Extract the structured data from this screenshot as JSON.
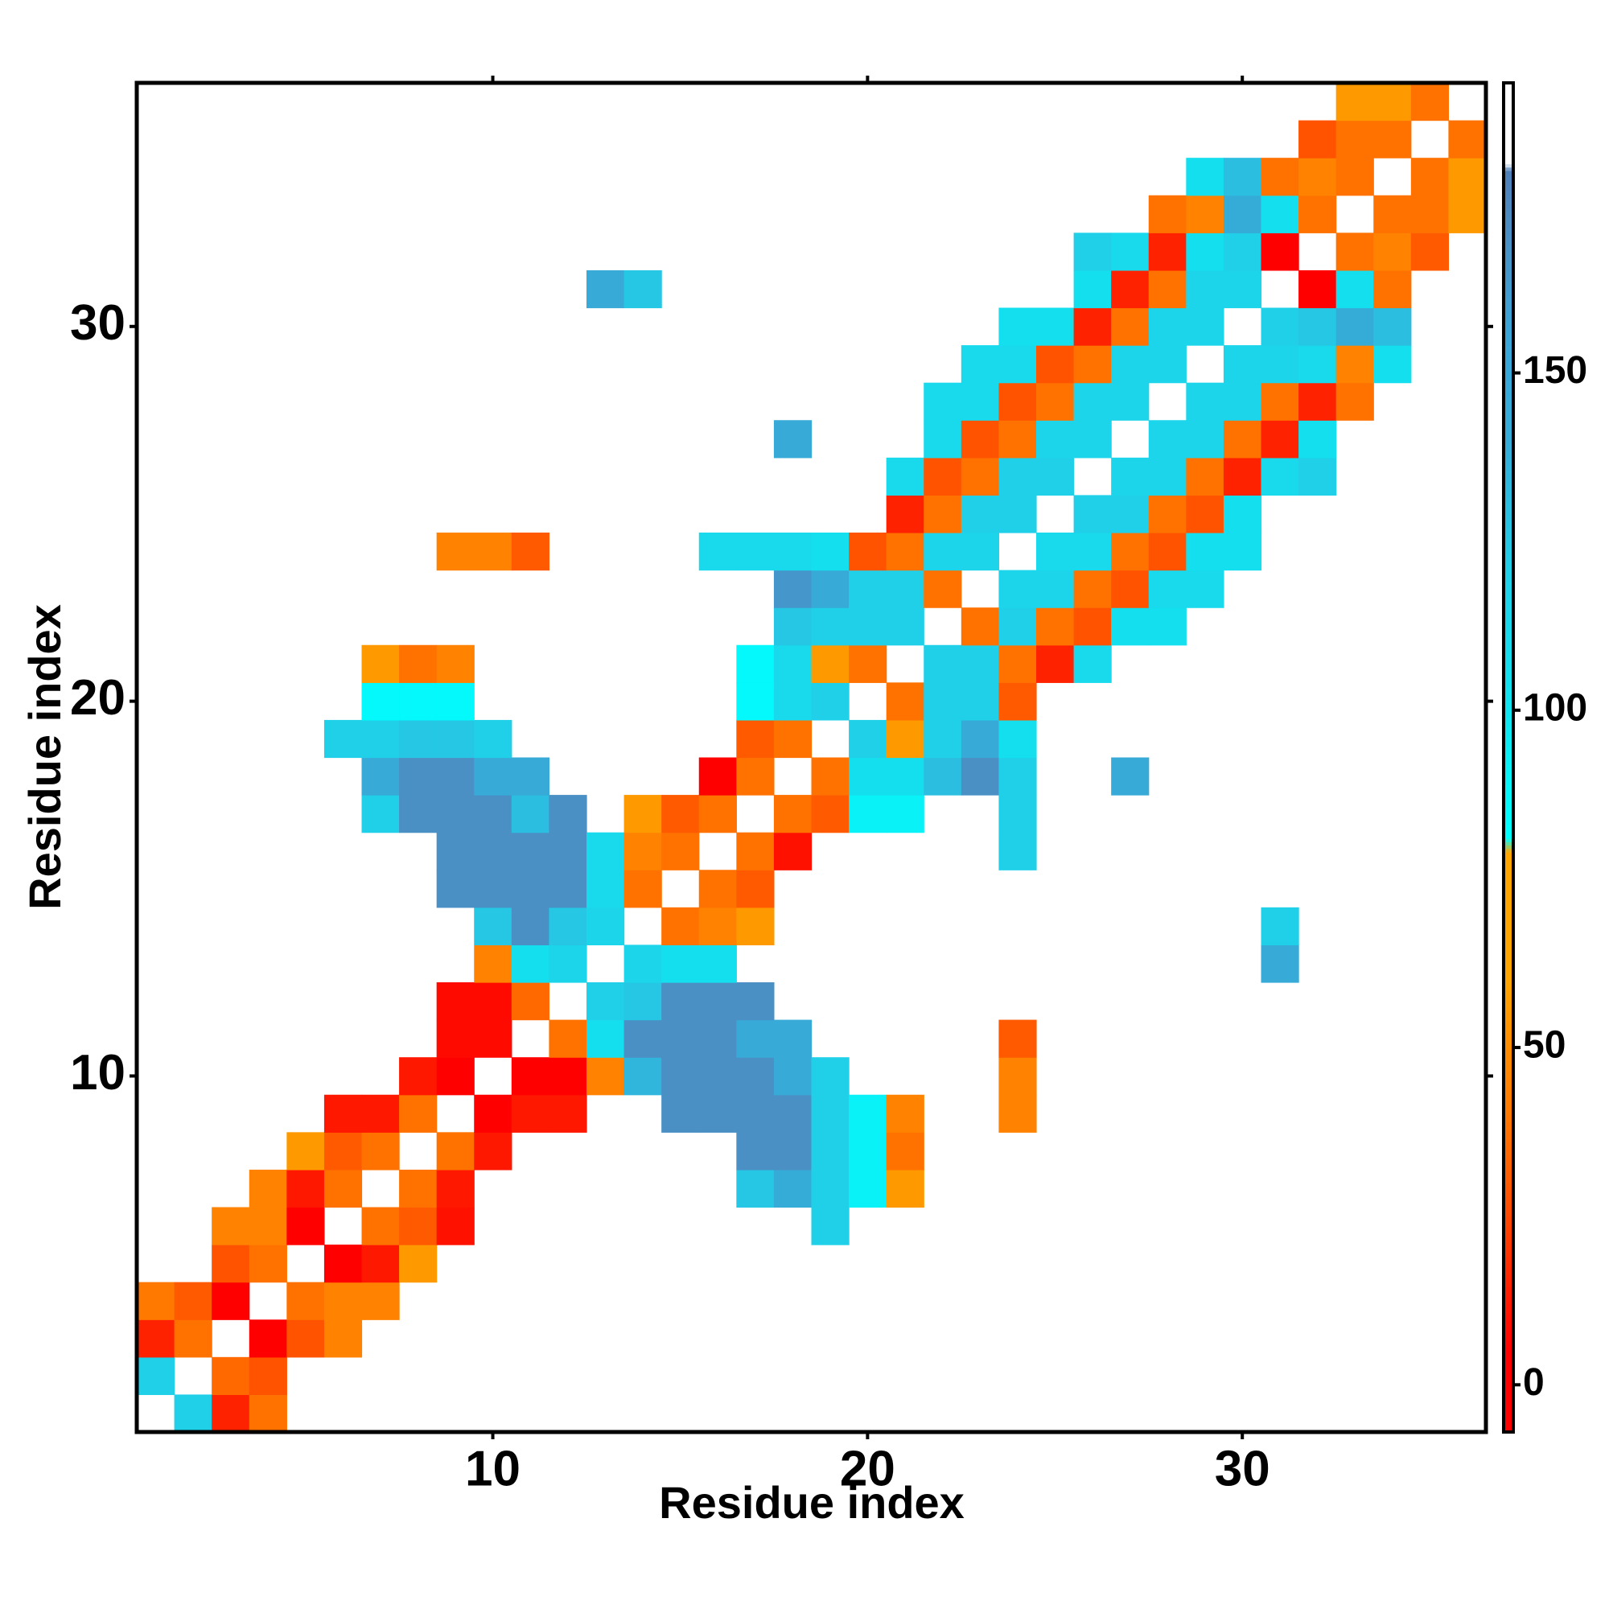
{
  "chart_data": {
    "type": "heatmap",
    "x_label": "Residue index",
    "y_label": "Residue index",
    "xlim": [
      0.5,
      36.5
    ],
    "ylim": [
      0.5,
      36.5
    ],
    "xticks": [
      10,
      20,
      30
    ],
    "yticks": [
      10,
      20,
      30
    ],
    "clim": [
      -7,
      193
    ],
    "cticks": [
      0,
      50,
      100,
      150
    ],
    "colorscale": [
      {
        "value": -7,
        "color": "#ff0000"
      },
      {
        "value": 5,
        "color": "#ff0000"
      },
      {
        "value": 15,
        "color": "#ff2200"
      },
      {
        "value": 30,
        "color": "#ff5a00"
      },
      {
        "value": 40,
        "color": "#ff7800"
      },
      {
        "value": 50,
        "color": "#ff8c00"
      },
      {
        "value": 60,
        "color": "#ffa500"
      },
      {
        "value": 79,
        "color": "#ffa500"
      },
      {
        "value": 81,
        "color": "#00ffff"
      },
      {
        "value": 100,
        "color": "#10e4f0"
      },
      {
        "value": 120,
        "color": "#20d0e8"
      },
      {
        "value": 140,
        "color": "#35acd8"
      },
      {
        "value": 155,
        "color": "#3aa6d8"
      },
      {
        "value": 170,
        "color": "#4a90c4"
      },
      {
        "value": 180,
        "color": "#4f80b8"
      },
      {
        "value": 181,
        "color": "#ffffff"
      },
      {
        "value": 193,
        "color": "#ffffff"
      }
    ],
    "series": [
      {
        "y": 1,
        "x": [
          2,
          3,
          4
        ],
        "values": [
          120,
          15,
          38
        ]
      },
      {
        "y": 2,
        "x": [
          1,
          3,
          4
        ],
        "values": [
          120,
          35,
          28
        ]
      },
      {
        "y": 3,
        "x": [
          1,
          2,
          4,
          5,
          6
        ],
        "values": [
          15,
          38,
          3,
          28,
          45
        ]
      },
      {
        "y": 4,
        "x": [
          1,
          2,
          3,
          5,
          6,
          7
        ],
        "values": [
          40,
          30,
          3,
          38,
          45,
          45
        ]
      },
      {
        "y": 5,
        "x": [
          3,
          4,
          6,
          7,
          8
        ],
        "values": [
          28,
          38,
          5,
          12,
          55
        ]
      },
      {
        "y": 6,
        "x": [
          3,
          4,
          5,
          7,
          8,
          9,
          19
        ],
        "values": [
          45,
          45,
          5,
          38,
          30,
          10,
          120
        ]
      },
      {
        "y": 7,
        "x": [
          4,
          5,
          6,
          8,
          9,
          17,
          18,
          19,
          20,
          21
        ],
        "values": [
          45,
          12,
          38,
          38,
          12,
          125,
          140,
          120,
          90,
          55
        ]
      },
      {
        "y": 8,
        "x": [
          5,
          6,
          7,
          9,
          10,
          17,
          18,
          19,
          20,
          21
        ],
        "values": [
          55,
          30,
          38,
          38,
          12,
          170,
          170,
          120,
          90,
          38
        ]
      },
      {
        "y": 9,
        "x": [
          6,
          7,
          8,
          10,
          11,
          12,
          15,
          16,
          17,
          18,
          19,
          20,
          21,
          24
        ],
        "values": [
          12,
          12,
          38,
          5,
          12,
          12,
          170,
          170,
          170,
          170,
          120,
          90,
          45,
          45
        ]
      },
      {
        "y": 10,
        "x": [
          8,
          9,
          11,
          12,
          13,
          14,
          15,
          16,
          17,
          18,
          19,
          24
        ],
        "values": [
          12,
          5,
          3,
          3,
          45,
          135,
          170,
          170,
          170,
          145,
          120,
          45
        ]
      },
      {
        "y": 11,
        "x": [
          9,
          10,
          12,
          13,
          14,
          15,
          16,
          17,
          18,
          24
        ],
        "values": [
          8,
          8,
          38,
          105,
          170,
          170,
          170,
          145,
          145,
          30
        ]
      },
      {
        "y": 12,
        "x": [
          9,
          10,
          11,
          13,
          14,
          15,
          16,
          17
        ],
        "values": [
          8,
          8,
          35,
          120,
          125,
          170,
          170,
          170
        ]
      },
      {
        "y": 13,
        "x": [
          10,
          11,
          12,
          14,
          15,
          16,
          31
        ],
        "values": [
          45,
          105,
          115,
          115,
          105,
          105,
          145
        ]
      },
      {
        "y": 14,
        "x": [
          10,
          11,
          12,
          13,
          15,
          16,
          17,
          31
        ],
        "values": [
          125,
          170,
          125,
          115,
          38,
          45,
          55,
          120
        ]
      },
      {
        "y": 15,
        "x": [
          9,
          10,
          11,
          12,
          13,
          14,
          16,
          17
        ],
        "values": [
          170,
          170,
          170,
          170,
          110,
          38,
          38,
          30
        ]
      },
      {
        "y": 16,
        "x": [
          9,
          10,
          11,
          12,
          13,
          14,
          15,
          17,
          18,
          24
        ],
        "values": [
          170,
          170,
          170,
          170,
          110,
          45,
          38,
          38,
          10,
          120
        ]
      },
      {
        "y": 17,
        "x": [
          7,
          8,
          9,
          10,
          11,
          12,
          14,
          15,
          16,
          18,
          19,
          20,
          21,
          24
        ],
        "values": [
          120,
          170,
          170,
          170,
          130,
          170,
          55,
          30,
          38,
          38,
          30,
          90,
          90,
          120
        ]
      },
      {
        "y": 18,
        "x": [
          7,
          8,
          9,
          10,
          11,
          16,
          17,
          19,
          20,
          21,
          22,
          23,
          24,
          27
        ],
        "values": [
          145,
          170,
          170,
          145,
          145,
          5,
          38,
          38,
          105,
          105,
          130,
          170,
          120,
          145
        ]
      },
      {
        "y": 19,
        "x": [
          6,
          7,
          8,
          9,
          10,
          17,
          18,
          20,
          21,
          22,
          23,
          24
        ],
        "values": [
          120,
          120,
          125,
          125,
          120,
          30,
          38,
          120,
          55,
          120,
          145,
          105
        ]
      },
      {
        "y": 20,
        "x": [
          7,
          8,
          9,
          17,
          18,
          19,
          21,
          22,
          23,
          24
        ],
        "values": [
          85,
          85,
          85,
          85,
          110,
          120,
          38,
          120,
          120,
          30
        ]
      },
      {
        "y": 21,
        "x": [
          7,
          8,
          9,
          17,
          18,
          19,
          20,
          22,
          23,
          24,
          25,
          26
        ],
        "values": [
          55,
          38,
          45,
          85,
          110,
          55,
          38,
          120,
          120,
          38,
          15,
          110
        ]
      },
      {
        "y": 22,
        "x": [
          18,
          19,
          20,
          21,
          23,
          24,
          25,
          26,
          27,
          28
        ],
        "values": [
          125,
          120,
          120,
          120,
          38,
          120,
          38,
          28,
          105,
          105
        ]
      },
      {
        "y": 23,
        "x": [
          18,
          19,
          20,
          21,
          22,
          24,
          25,
          26,
          27,
          28,
          29
        ],
        "values": [
          165,
          145,
          120,
          120,
          38,
          115,
          115,
          38,
          28,
          110,
          110
        ]
      },
      {
        "y": 24,
        "x": [
          9,
          10,
          11,
          16,
          17,
          18,
          19,
          20,
          21,
          22,
          23,
          25,
          26,
          27,
          28,
          29,
          30
        ],
        "values": [
          45,
          45,
          30,
          110,
          110,
          110,
          105,
          28,
          38,
          115,
          115,
          110,
          110,
          38,
          28,
          105,
          105
        ]
      },
      {
        "y": 25,
        "x": [
          21,
          22,
          23,
          24,
          26,
          27,
          28,
          29,
          30
        ],
        "values": [
          15,
          38,
          120,
          120,
          120,
          120,
          38,
          28,
          105
        ]
      },
      {
        "y": 26,
        "x": [
          21,
          22,
          23,
          24,
          25,
          27,
          28,
          29,
          30,
          31,
          32
        ],
        "values": [
          110,
          28,
          38,
          120,
          120,
          115,
          115,
          38,
          15,
          110,
          120
        ]
      },
      {
        "y": 27,
        "x": [
          18,
          22,
          23,
          24,
          25,
          26,
          28,
          29,
          30,
          31,
          32
        ],
        "values": [
          145,
          110,
          28,
          38,
          115,
          115,
          115,
          115,
          38,
          15,
          105
        ]
      },
      {
        "y": 28,
        "x": [
          22,
          23,
          24,
          25,
          26,
          27,
          29,
          30,
          31,
          32,
          33
        ],
        "values": [
          110,
          110,
          28,
          38,
          115,
          115,
          115,
          115,
          38,
          15,
          38
        ]
      },
      {
        "y": 29,
        "x": [
          23,
          24,
          25,
          26,
          27,
          28,
          30,
          31,
          32,
          33,
          34
        ],
        "values": [
          110,
          110,
          28,
          38,
          115,
          115,
          115,
          115,
          110,
          45,
          105
        ]
      },
      {
        "y": 30,
        "x": [
          24,
          25,
          26,
          27,
          28,
          29,
          31,
          32,
          33,
          34
        ],
        "values": [
          105,
          105,
          15,
          38,
          115,
          115,
          120,
          125,
          140,
          130
        ]
      },
      {
        "y": 31,
        "x": [
          13,
          14,
          26,
          27,
          28,
          29,
          30,
          32,
          33,
          34
        ],
        "values": [
          145,
          125,
          105,
          15,
          38,
          115,
          115,
          3,
          105,
          38
        ]
      },
      {
        "y": 32,
        "x": [
          26,
          27,
          28,
          29,
          30,
          31,
          33,
          34,
          35
        ],
        "values": [
          120,
          110,
          15,
          105,
          120,
          3,
          38,
          45,
          30
        ]
      },
      {
        "y": 33,
        "x": [
          28,
          29,
          30,
          31,
          32,
          34,
          35,
          36
        ],
        "values": [
          38,
          45,
          140,
          105,
          38,
          38,
          38,
          55
        ]
      },
      {
        "y": 34,
        "x": [
          29,
          30,
          31,
          32,
          33,
          35,
          36
        ],
        "values": [
          105,
          130,
          38,
          45,
          38,
          38,
          55
        ]
      },
      {
        "y": 35,
        "x": [
          32,
          33,
          34,
          36
        ],
        "values": [
          28,
          38,
          38,
          38
        ]
      },
      {
        "y": 36,
        "x": [
          33,
          34,
          35
        ],
        "values": [
          55,
          55,
          38
        ]
      }
    ]
  }
}
